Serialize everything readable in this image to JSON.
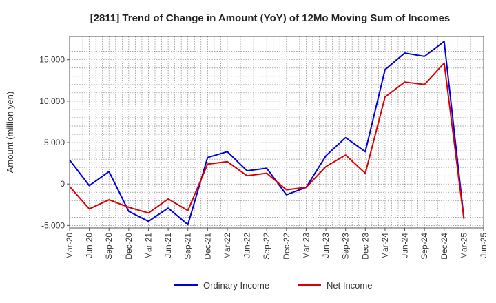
{
  "chart_data": {
    "type": "line",
    "title": "[2811]  Trend of Change in Amount (YoY) of 12Mo Moving Sum of Incomes",
    "xlabel": "",
    "ylabel": "Amount (million yen)",
    "x_tick_labels": [
      "Mar-20",
      "Jun-20",
      "Sep-20",
      "Dec-20",
      "Mar-21",
      "Jun-21",
      "Sep-21",
      "Dec-21",
      "Mar-22",
      "Jun-22",
      "Sep-22",
      "Dec-22",
      "Mar-23",
      "Jun-23",
      "Sep-23",
      "Dec-23",
      "Mar-24",
      "Jun-24",
      "Sep-24",
      "Dec-24",
      "Mar-25",
      "Jun-25"
    ],
    "y_ticks": [
      -5000,
      0,
      5000,
      10000,
      15000
    ],
    "y_tick_labels": [
      "-5,000",
      "0",
      "5,000",
      "10,000",
      "15,000"
    ],
    "ylim": [
      -5300,
      17800
    ],
    "grid": true,
    "legend_position": "bottom",
    "series": [
      {
        "name": "Ordinary Income",
        "color": "#0000dd",
        "values": [
          2900,
          -200,
          1500,
          -3300,
          -4500,
          -2900,
          -4900,
          3200,
          3900,
          1600,
          1900,
          -1300,
          -400,
          3400,
          5600,
          3900,
          13800,
          15800,
          15400,
          17200,
          -4100
        ]
      },
      {
        "name": "Net Income",
        "color": "#dd0000",
        "values": [
          -300,
          -3000,
          -1900,
          -2800,
          -3500,
          -1800,
          -3200,
          2400,
          2700,
          1000,
          1300,
          -700,
          -400,
          2100,
          3500,
          1300,
          10500,
          12300,
          12000,
          14600,
          -4200
        ]
      }
    ]
  }
}
